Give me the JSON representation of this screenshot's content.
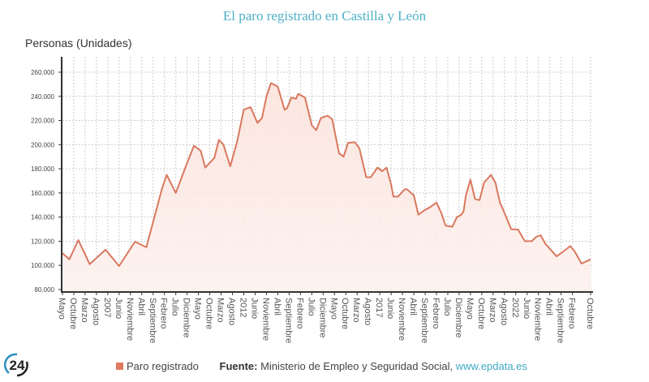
{
  "title": "El paro registrado en Castilla y León",
  "footer": {
    "legend_label": "Paro registrado",
    "source_label": "Fuente:",
    "source_text": "Ministerio de Empleo y Seguridad Social,",
    "source_link": "www.epdata.es",
    "logo_text": "24"
  },
  "colors": {
    "line": "#d9785e",
    "fill": "#fdeeea",
    "title": "#4fb0c6",
    "link": "#3fa9c4"
  },
  "chart_data": {
    "type": "area",
    "title": "El paro registrado en Castilla y León",
    "ylabel": "Personas (Unidades)",
    "xlabel": "",
    "ylim": [
      80000,
      260000
    ],
    "yticks": [
      "80.000",
      "100.000",
      "120.000",
      "140.000",
      "160.000",
      "180.000",
      "200.000",
      "220.000",
      "240.000",
      "260.000"
    ],
    "xrange": [
      "2005-05",
      "2024-10"
    ],
    "xtick_labels": [
      "Mayo",
      "Octubre",
      "Marzo",
      "Agosto",
      "2007",
      "Junio",
      "Noviembre",
      "Abril",
      "Septiembre",
      "Febrero",
      "Julio",
      "Diciembre",
      "Mayo",
      "Octubre",
      "Marzo",
      "Agosto",
      "2012",
      "Junio",
      "Noviembre",
      "Abril",
      "Septiembre",
      "Febrero",
      "Julio",
      "Diciembre",
      "Mayo",
      "Octubre",
      "Marzo",
      "Agosto",
      "2017",
      "Junio",
      "Noviembre",
      "Abril",
      "Septiembre",
      "Febrero",
      "Julio",
      "Diciembre",
      "Mayo",
      "Octubre",
      "Marzo",
      "Agosto",
      "2022",
      "Junio",
      "Noviembre",
      "Abril",
      "Septiembre",
      "Febrero",
      "Octubre"
    ],
    "grid": true,
    "legend": "bottom",
    "series": [
      {
        "name": "Paro registrado",
        "points": [
          [
            "2005-05",
            110000
          ],
          [
            "2005-08",
            105000
          ],
          [
            "2005-12",
            121000
          ],
          [
            "2006-05",
            101000
          ],
          [
            "2006-12",
            113000
          ],
          [
            "2007-06",
            99500
          ],
          [
            "2008-01",
            119600
          ],
          [
            "2008-06",
            115000
          ],
          [
            "2009-01",
            164000
          ],
          [
            "2009-03",
            175000
          ],
          [
            "2009-07",
            160000
          ],
          [
            "2009-12",
            185000
          ],
          [
            "2010-03",
            199000
          ],
          [
            "2010-06",
            195000
          ],
          [
            "2010-08",
            181000
          ],
          [
            "2010-12",
            189000
          ],
          [
            "2011-02",
            204000
          ],
          [
            "2011-04",
            200000
          ],
          [
            "2011-07",
            182000
          ],
          [
            "2011-10",
            202000
          ],
          [
            "2012-01",
            229000
          ],
          [
            "2012-04",
            231000
          ],
          [
            "2012-07",
            218000
          ],
          [
            "2012-09",
            222000
          ],
          [
            "2012-11",
            240000
          ],
          [
            "2013-01",
            251000
          ],
          [
            "2013-04",
            248000
          ],
          [
            "2013-07",
            229000
          ],
          [
            "2013-08",
            230000
          ],
          [
            "2013-10",
            239000
          ],
          [
            "2013-12",
            238000
          ],
          [
            "2014-01",
            242000
          ],
          [
            "2014-04",
            239000
          ],
          [
            "2014-07",
            216000
          ],
          [
            "2014-09",
            212000
          ],
          [
            "2014-11",
            222000
          ],
          [
            "2015-02",
            224000
          ],
          [
            "2015-04",
            221000
          ],
          [
            "2015-07",
            193000
          ],
          [
            "2015-09",
            190000
          ],
          [
            "2015-11",
            201500
          ],
          [
            "2016-02",
            202000
          ],
          [
            "2016-04",
            197000
          ],
          [
            "2016-07",
            173000
          ],
          [
            "2016-09",
            173000
          ],
          [
            "2016-12",
            181000
          ],
          [
            "2017-02",
            178000
          ],
          [
            "2017-04",
            181000
          ],
          [
            "2017-06",
            167000
          ],
          [
            "2017-07",
            157000
          ],
          [
            "2017-09",
            157000
          ],
          [
            "2017-12",
            163000
          ],
          [
            "2018-01",
            163000
          ],
          [
            "2018-04",
            158000
          ],
          [
            "2018-06",
            142000
          ],
          [
            "2018-09",
            146000
          ],
          [
            "2018-11",
            148000
          ],
          [
            "2019-02",
            152000
          ],
          [
            "2019-04",
            144000
          ],
          [
            "2019-06",
            133000
          ],
          [
            "2019-09",
            132000
          ],
          [
            "2019-11",
            140000
          ],
          [
            "2020-01",
            142000
          ],
          [
            "2020-02",
            145000
          ],
          [
            "2020-03",
            158000
          ],
          [
            "2020-05",
            171000
          ],
          [
            "2020-07",
            155000
          ],
          [
            "2020-09",
            154000
          ],
          [
            "2020-11",
            168600
          ],
          [
            "2021-02",
            175000
          ],
          [
            "2021-04",
            168600
          ],
          [
            "2021-06",
            152000
          ],
          [
            "2021-07",
            148000
          ],
          [
            "2021-11",
            130000
          ],
          [
            "2022-02",
            129700
          ],
          [
            "2022-05",
            120000
          ],
          [
            "2022-08",
            120000
          ],
          [
            "2022-10",
            123600
          ],
          [
            "2022-12",
            125000
          ],
          [
            "2023-02",
            118000
          ],
          [
            "2023-07",
            107500
          ],
          [
            "2023-10",
            111600
          ],
          [
            "2024-01",
            116000
          ],
          [
            "2024-03",
            111600
          ],
          [
            "2024-06",
            101500
          ],
          [
            "2024-10",
            105000
          ]
        ]
      }
    ]
  }
}
